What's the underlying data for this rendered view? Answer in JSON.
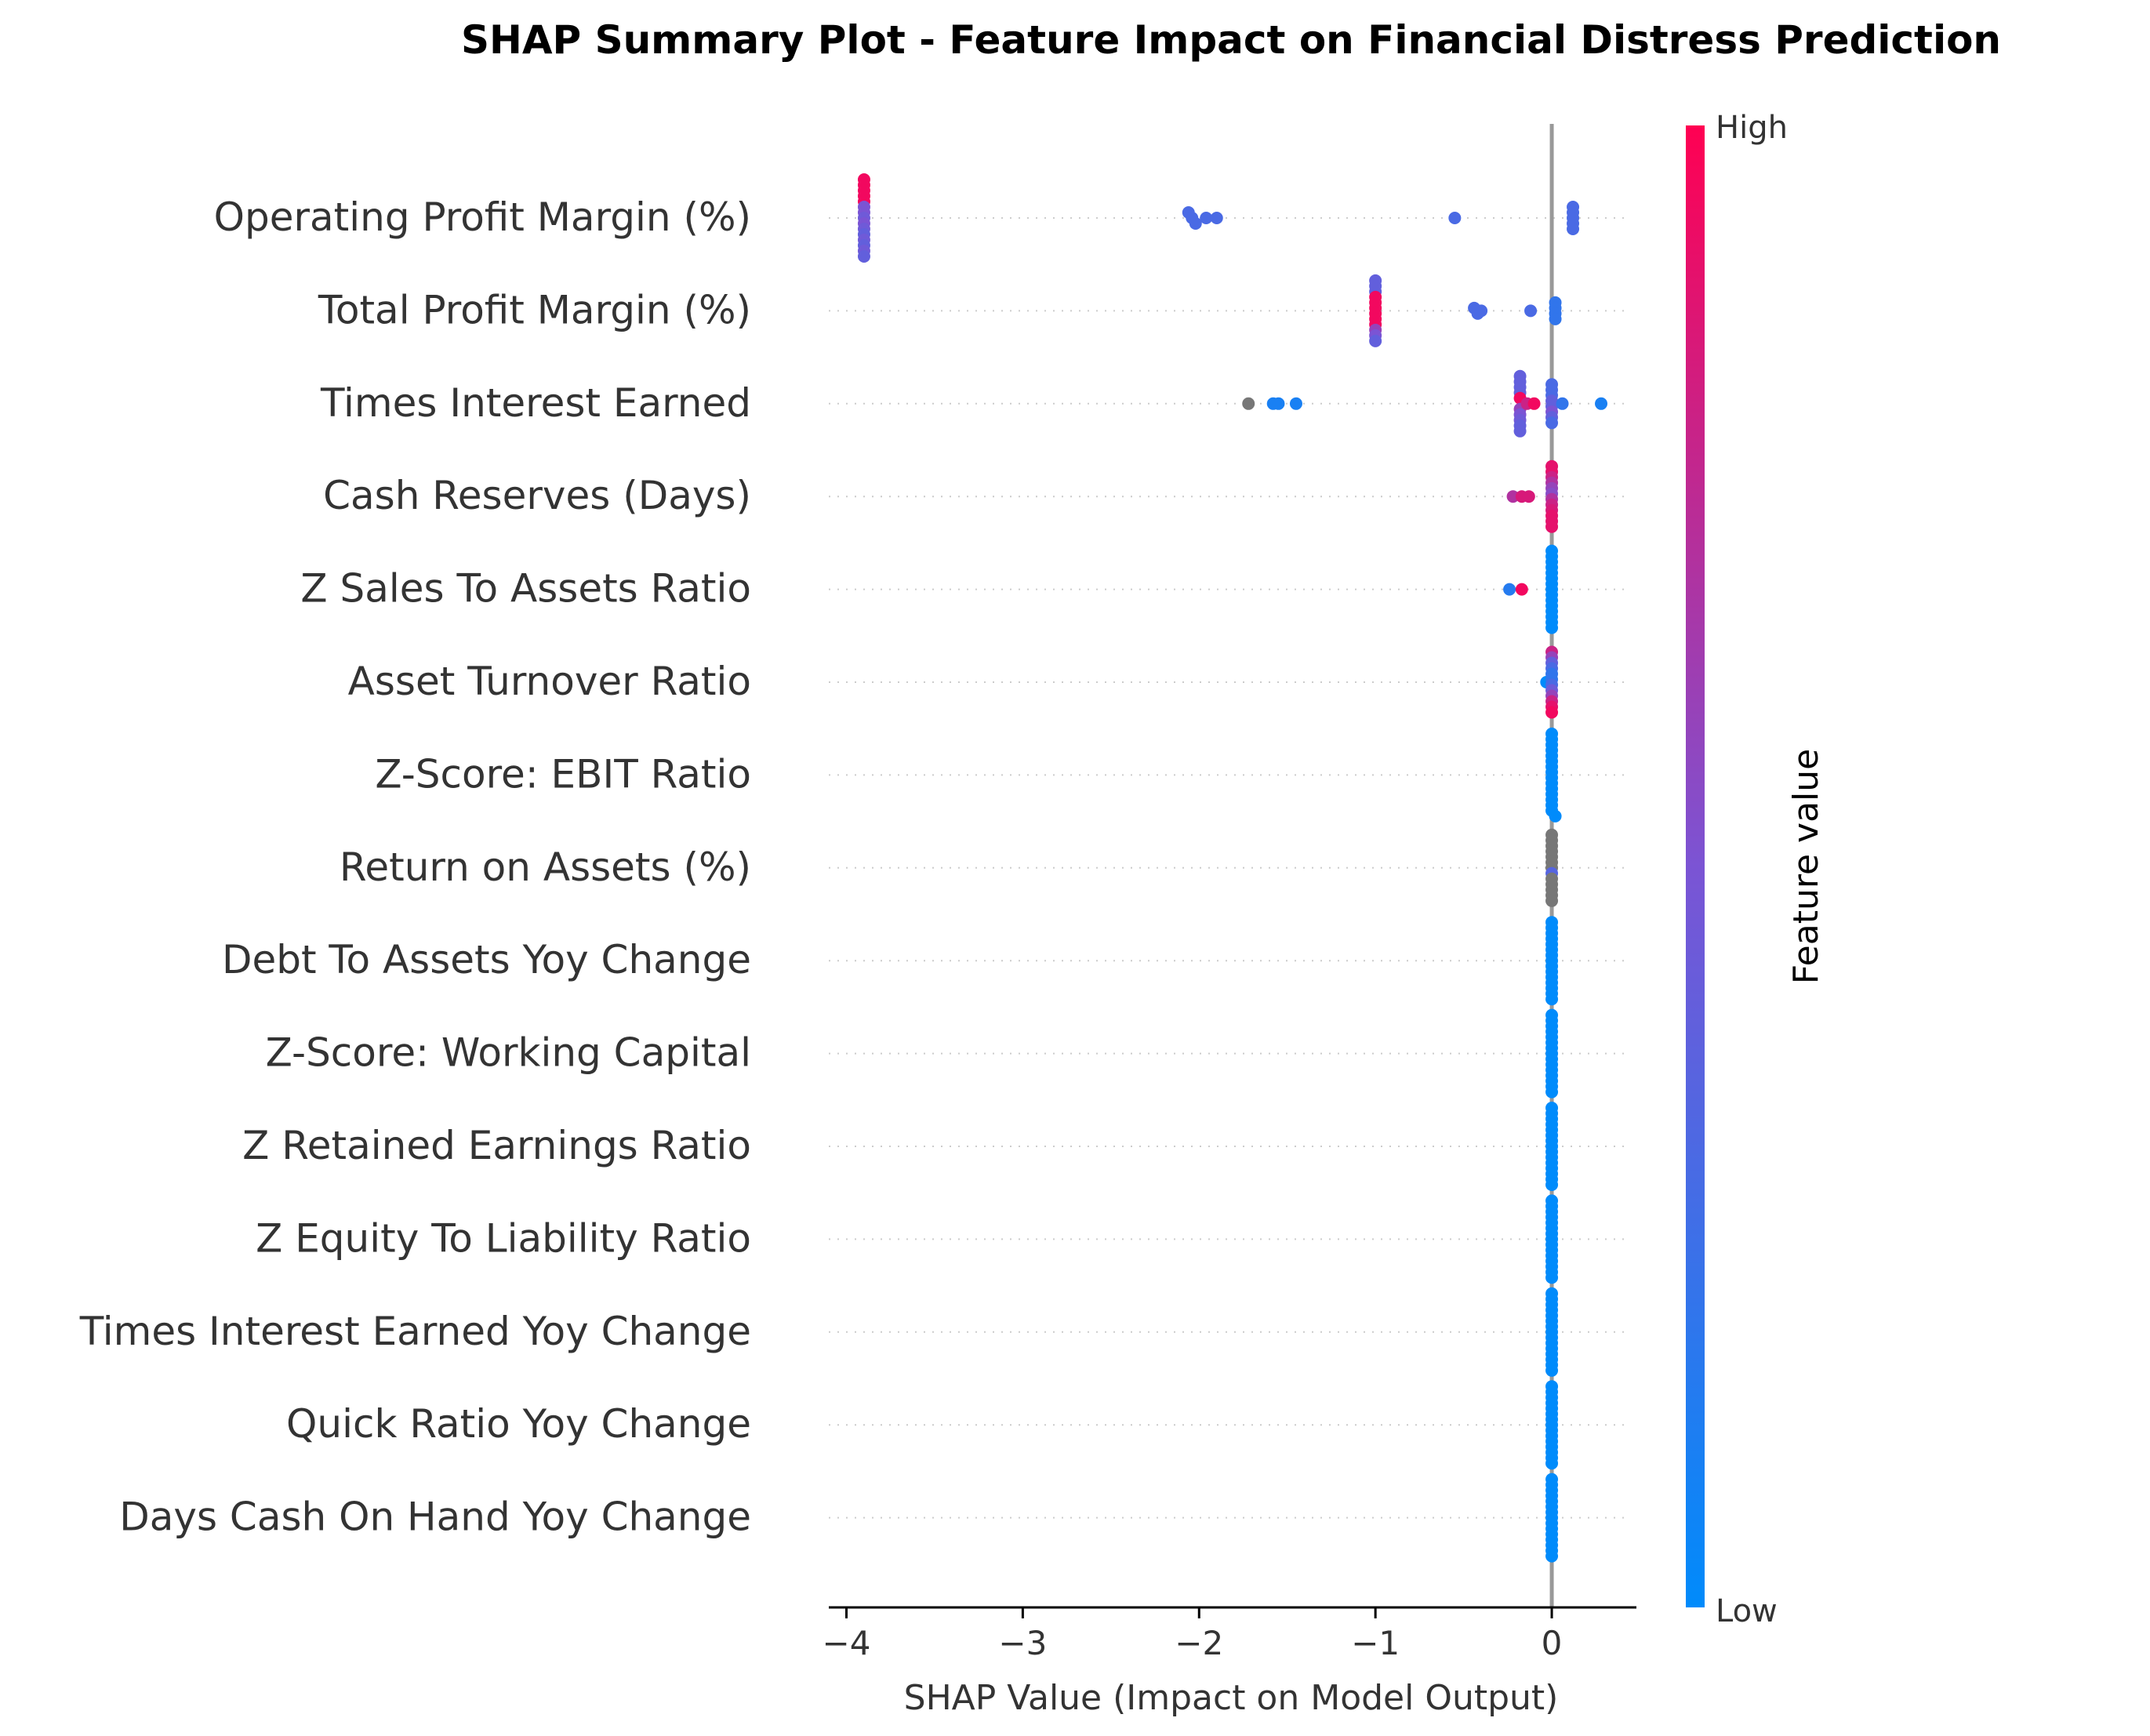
{
  "chart_data": {
    "type": "scatter",
    "title": "SHAP Summary Plot - Feature Impact on Financial Distress Prediction",
    "xlabel": "SHAP Value (Impact on Model Output)",
    "ylabel": "",
    "xlim": [
      -4.1,
      0.48
    ],
    "xticks": [
      -4,
      -3,
      -2,
      -1,
      0
    ],
    "xtick_labels": [
      "−4",
      "−3",
      "−2",
      "−1",
      "0"
    ],
    "grid": false,
    "zero_line": true,
    "colorbar": {
      "label": "Feature value",
      "high_label": "High",
      "low_label": "Low",
      "high_color": "#ff0052",
      "mid_color": "#7b54d4",
      "low_color": "#008bfb"
    },
    "missing_value_color": "#777777",
    "features": [
      {
        "name": "Operating Profit Margin (%)",
        "points": [
          {
            "x": -3.9,
            "v": 0.95
          },
          {
            "x": -3.9,
            "v": 0.95
          },
          {
            "x": -3.9,
            "v": 0.95
          },
          {
            "x": -3.9,
            "v": 0.95
          },
          {
            "x": -3.9,
            "v": 0.95
          },
          {
            "x": -3.9,
            "v": 0.5
          },
          {
            "x": -3.9,
            "v": 0.5
          },
          {
            "x": -3.9,
            "v": 0.45
          },
          {
            "x": -3.9,
            "v": 0.5
          },
          {
            "x": -3.9,
            "v": 0.45
          },
          {
            "x": -3.9,
            "v": 0.4
          },
          {
            "x": -3.9,
            "v": 0.45
          },
          {
            "x": -3.9,
            "v": 0.4
          },
          {
            "x": -3.9,
            "v": 0.45
          },
          {
            "x": -3.9,
            "v": 0.4
          },
          {
            "x": -2.06,
            "v": 0.3
          },
          {
            "x": -2.04,
            "v": 0.3
          },
          {
            "x": -2.02,
            "v": 0.3
          },
          {
            "x": -1.96,
            "v": 0.3
          },
          {
            "x": -1.9,
            "v": 0.3
          },
          {
            "x": -0.55,
            "v": 0.3
          },
          {
            "x": 0.12,
            "v": 0.3
          },
          {
            "x": 0.12,
            "v": 0.3
          },
          {
            "x": 0.12,
            "v": 0.3
          },
          {
            "x": 0.12,
            "v": 0.3
          },
          {
            "x": 0.12,
            "v": 0.3
          }
        ]
      },
      {
        "name": "Total Profit Margin (%)",
        "points": [
          {
            "x": -1.0,
            "v": 0.4
          },
          {
            "x": -1.0,
            "v": 0.4
          },
          {
            "x": -1.0,
            "v": 0.4
          },
          {
            "x": -1.0,
            "v": 0.95
          },
          {
            "x": -1.0,
            "v": 0.95
          },
          {
            "x": -1.0,
            "v": 0.95
          },
          {
            "x": -1.0,
            "v": 0.95
          },
          {
            "x": -1.0,
            "v": 0.95
          },
          {
            "x": -1.0,
            "v": 0.95
          },
          {
            "x": -1.0,
            "v": 0.6
          },
          {
            "x": -1.0,
            "v": 0.5
          },
          {
            "x": -1.0,
            "v": 0.4
          },
          {
            "x": -0.44,
            "v": 0.3
          },
          {
            "x": -0.42,
            "v": 0.3
          },
          {
            "x": -0.4,
            "v": 0.3
          },
          {
            "x": -0.12,
            "v": 0.3
          },
          {
            "x": 0.02,
            "v": 0.2
          },
          {
            "x": 0.02,
            "v": 0.2
          },
          {
            "x": 0.02,
            "v": 0.2
          },
          {
            "x": 0.02,
            "v": 0.2
          }
        ]
      },
      {
        "name": "Times Interest Earned",
        "points": [
          {
            "x": -1.72,
            "v": null
          },
          {
            "x": -1.58,
            "v": 0.1
          },
          {
            "x": -1.55,
            "v": 0.1
          },
          {
            "x": -1.45,
            "v": 0.1
          },
          {
            "x": -0.18,
            "v": 0.4
          },
          {
            "x": -0.18,
            "v": 0.4
          },
          {
            "x": -0.18,
            "v": 0.4
          },
          {
            "x": -0.18,
            "v": 0.4
          },
          {
            "x": -0.18,
            "v": 0.95
          },
          {
            "x": -0.16,
            "v": 0.95
          },
          {
            "x": -0.14,
            "v": 0.8
          },
          {
            "x": -0.1,
            "v": 0.95
          },
          {
            "x": -0.18,
            "v": 0.6
          },
          {
            "x": -0.18,
            "v": 0.5
          },
          {
            "x": -0.18,
            "v": 0.45
          },
          {
            "x": -0.18,
            "v": 0.4
          },
          {
            "x": -0.18,
            "v": 0.4
          },
          {
            "x": 0.0,
            "v": 0.3
          },
          {
            "x": 0.0,
            "v": 0.3
          },
          {
            "x": 0.0,
            "v": 0.3
          },
          {
            "x": 0.0,
            "v": 0.4
          },
          {
            "x": 0.0,
            "v": 0.4
          },
          {
            "x": 0.0,
            "v": 0.5
          },
          {
            "x": 0.0,
            "v": 0.4
          },
          {
            "x": 0.0,
            "v": 0.3
          },
          {
            "x": 0.06,
            "v": 0.2
          },
          {
            "x": 0.28,
            "v": 0.1
          }
        ]
      },
      {
        "name": "Cash Reserves (Days)",
        "points": [
          {
            "x": -0.22,
            "v": 0.7
          },
          {
            "x": -0.17,
            "v": 0.85
          },
          {
            "x": -0.13,
            "v": 0.85
          },
          {
            "x": 0.0,
            "v": 0.9
          },
          {
            "x": 0.0,
            "v": 0.9
          },
          {
            "x": 0.0,
            "v": 0.8
          },
          {
            "x": 0.0,
            "v": 0.7
          },
          {
            "x": 0.0,
            "v": 0.6
          },
          {
            "x": 0.0,
            "v": 0.55
          },
          {
            "x": 0.0,
            "v": 0.7
          },
          {
            "x": 0.0,
            "v": 0.8
          },
          {
            "x": 0.0,
            "v": 0.85
          },
          {
            "x": 0.0,
            "v": 0.9
          },
          {
            "x": 0.0,
            "v": 0.9
          },
          {
            "x": 0.0,
            "v": 0.9
          }
        ]
      },
      {
        "name": "Z Sales To Assets Ratio",
        "points": [
          {
            "x": -0.24,
            "v": 0.15
          },
          {
            "x": -0.17,
            "v": 0.95
          },
          {
            "x": 0.0,
            "v": 0.0
          },
          {
            "x": 0.0,
            "v": 0.0
          },
          {
            "x": 0.0,
            "v": 0.0
          },
          {
            "x": 0.0,
            "v": 0.0
          },
          {
            "x": 0.0,
            "v": 0.0
          },
          {
            "x": 0.0,
            "v": 0.0
          },
          {
            "x": 0.0,
            "v": 0.0
          },
          {
            "x": 0.0,
            "v": 0.0
          },
          {
            "x": 0.0,
            "v": 0.0
          },
          {
            "x": 0.0,
            "v": 0.0
          },
          {
            "x": 0.0,
            "v": 0.0
          },
          {
            "x": 0.0,
            "v": 0.0
          },
          {
            "x": 0.0,
            "v": 0.0
          },
          {
            "x": 0.0,
            "v": 0.0
          },
          {
            "x": 0.0,
            "v": 0.0
          }
        ]
      },
      {
        "name": "Asset Turnover Ratio",
        "points": [
          {
            "x": -0.03,
            "v": 0.0
          },
          {
            "x": 0.0,
            "v": 0.8
          },
          {
            "x": 0.0,
            "v": 0.6
          },
          {
            "x": 0.0,
            "v": 0.4
          },
          {
            "x": 0.0,
            "v": 0.3
          },
          {
            "x": 0.0,
            "v": 0.2
          },
          {
            "x": 0.0,
            "v": 0.2
          },
          {
            "x": 0.0,
            "v": 0.3
          },
          {
            "x": 0.0,
            "v": 0.45
          },
          {
            "x": 0.0,
            "v": 0.6
          },
          {
            "x": 0.0,
            "v": 0.8
          },
          {
            "x": 0.0,
            "v": 0.9
          },
          {
            "x": 0.0,
            "v": 0.95
          }
        ]
      },
      {
        "name": "Z-Score: EBIT Ratio",
        "points": [
          {
            "x": 0.0,
            "v": 0.0
          },
          {
            "x": 0.0,
            "v": 0.0
          },
          {
            "x": 0.0,
            "v": 0.0
          },
          {
            "x": 0.0,
            "v": 0.0
          },
          {
            "x": 0.0,
            "v": 0.0
          },
          {
            "x": 0.0,
            "v": 0.0
          },
          {
            "x": 0.0,
            "v": 0.0
          },
          {
            "x": 0.0,
            "v": 0.0
          },
          {
            "x": 0.0,
            "v": 0.0
          },
          {
            "x": 0.0,
            "v": 0.0
          },
          {
            "x": 0.0,
            "v": 0.0
          },
          {
            "x": 0.0,
            "v": 0.0
          },
          {
            "x": 0.0,
            "v": 0.0
          },
          {
            "x": 0.0,
            "v": 0.0
          },
          {
            "x": 0.0,
            "v": 0.0
          },
          {
            "x": 0.02,
            "v": 0.0
          }
        ]
      },
      {
        "name": "Return on Assets (%)",
        "points": [
          {
            "x": 0.0,
            "v": null
          },
          {
            "x": 0.0,
            "v": null
          },
          {
            "x": 0.0,
            "v": null
          },
          {
            "x": 0.0,
            "v": null
          },
          {
            "x": 0.0,
            "v": null
          },
          {
            "x": 0.0,
            "v": null
          },
          {
            "x": 0.0,
            "v": null
          },
          {
            "x": 0.0,
            "v": 0.35
          },
          {
            "x": 0.0,
            "v": null
          },
          {
            "x": 0.0,
            "v": null
          },
          {
            "x": 0.0,
            "v": null
          },
          {
            "x": 0.0,
            "v": null
          },
          {
            "x": 0.0,
            "v": null
          }
        ]
      },
      {
        "name": "Debt To Assets Yoy Change",
        "points": [
          {
            "x": 0.0,
            "v": 0.0
          },
          {
            "x": 0.0,
            "v": 0.0
          },
          {
            "x": 0.0,
            "v": 0.0
          },
          {
            "x": 0.0,
            "v": 0.0
          },
          {
            "x": 0.0,
            "v": 0.0
          },
          {
            "x": 0.0,
            "v": 0.0
          },
          {
            "x": 0.0,
            "v": 0.0
          },
          {
            "x": 0.0,
            "v": 0.0
          },
          {
            "x": 0.0,
            "v": 0.0
          },
          {
            "x": 0.0,
            "v": 0.0
          },
          {
            "x": 0.0,
            "v": 0.0
          },
          {
            "x": 0.0,
            "v": 0.0
          },
          {
            "x": 0.0,
            "v": 0.0
          },
          {
            "x": 0.0,
            "v": 0.0
          },
          {
            "x": 0.0,
            "v": 0.0
          }
        ]
      },
      {
        "name": "Z-Score: Working Capital",
        "points": [
          {
            "x": 0.0,
            "v": 0.0
          },
          {
            "x": 0.0,
            "v": 0.0
          },
          {
            "x": 0.0,
            "v": 0.0
          },
          {
            "x": 0.0,
            "v": 0.0
          },
          {
            "x": 0.0,
            "v": 0.0
          },
          {
            "x": 0.0,
            "v": 0.0
          },
          {
            "x": 0.0,
            "v": 0.0
          },
          {
            "x": 0.0,
            "v": 0.0
          },
          {
            "x": 0.0,
            "v": 0.0
          },
          {
            "x": 0.0,
            "v": 0.0
          },
          {
            "x": 0.0,
            "v": 0.0
          },
          {
            "x": 0.0,
            "v": 0.0
          },
          {
            "x": 0.0,
            "v": 0.0
          },
          {
            "x": 0.0,
            "v": 0.0
          },
          {
            "x": 0.0,
            "v": 0.0
          }
        ]
      },
      {
        "name": "Z Retained Earnings Ratio",
        "points": [
          {
            "x": 0.0,
            "v": 0.0
          },
          {
            "x": 0.0,
            "v": 0.0
          },
          {
            "x": 0.0,
            "v": 0.0
          },
          {
            "x": 0.0,
            "v": 0.0
          },
          {
            "x": 0.0,
            "v": 0.0
          },
          {
            "x": 0.0,
            "v": 0.0
          },
          {
            "x": 0.0,
            "v": 0.0
          },
          {
            "x": 0.0,
            "v": 0.0
          },
          {
            "x": 0.0,
            "v": 0.0
          },
          {
            "x": 0.0,
            "v": 0.0
          },
          {
            "x": 0.0,
            "v": 0.0
          },
          {
            "x": 0.0,
            "v": 0.0
          },
          {
            "x": 0.0,
            "v": 0.0
          },
          {
            "x": 0.0,
            "v": 0.0
          },
          {
            "x": 0.0,
            "v": 0.0
          }
        ]
      },
      {
        "name": "Z Equity To Liability Ratio",
        "points": [
          {
            "x": 0.0,
            "v": 0.0
          },
          {
            "x": 0.0,
            "v": 0.0
          },
          {
            "x": 0.0,
            "v": 0.0
          },
          {
            "x": 0.0,
            "v": 0.0
          },
          {
            "x": 0.0,
            "v": 0.0
          },
          {
            "x": 0.0,
            "v": 0.0
          },
          {
            "x": 0.0,
            "v": 0.0
          },
          {
            "x": 0.0,
            "v": 0.0
          },
          {
            "x": 0.0,
            "v": 0.0
          },
          {
            "x": 0.0,
            "v": 0.0
          },
          {
            "x": 0.0,
            "v": 0.0
          },
          {
            "x": 0.0,
            "v": 0.0
          },
          {
            "x": 0.0,
            "v": 0.0
          },
          {
            "x": 0.0,
            "v": 0.0
          },
          {
            "x": 0.0,
            "v": 0.0
          }
        ]
      },
      {
        "name": "Times Interest Earned Yoy Change",
        "points": [
          {
            "x": 0.0,
            "v": 0.0
          },
          {
            "x": 0.0,
            "v": 0.0
          },
          {
            "x": 0.0,
            "v": 0.0
          },
          {
            "x": 0.0,
            "v": 0.0
          },
          {
            "x": 0.0,
            "v": 0.0
          },
          {
            "x": 0.0,
            "v": 0.0
          },
          {
            "x": 0.0,
            "v": 0.0
          },
          {
            "x": 0.0,
            "v": 0.0
          },
          {
            "x": 0.0,
            "v": 0.0
          },
          {
            "x": 0.0,
            "v": 0.0
          },
          {
            "x": 0.0,
            "v": 0.0
          },
          {
            "x": 0.0,
            "v": 0.0
          },
          {
            "x": 0.0,
            "v": 0.0
          },
          {
            "x": 0.0,
            "v": 0.0
          },
          {
            "x": 0.0,
            "v": 0.0
          }
        ]
      },
      {
        "name": "Quick Ratio Yoy Change",
        "points": [
          {
            "x": 0.0,
            "v": 0.0
          },
          {
            "x": 0.0,
            "v": 0.0
          },
          {
            "x": 0.0,
            "v": 0.0
          },
          {
            "x": 0.0,
            "v": 0.0
          },
          {
            "x": 0.0,
            "v": 0.0
          },
          {
            "x": 0.0,
            "v": 0.0
          },
          {
            "x": 0.0,
            "v": 0.0
          },
          {
            "x": 0.0,
            "v": 0.0
          },
          {
            "x": 0.0,
            "v": 0.0
          },
          {
            "x": 0.0,
            "v": 0.0
          },
          {
            "x": 0.0,
            "v": 0.0
          },
          {
            "x": 0.0,
            "v": 0.0
          },
          {
            "x": 0.0,
            "v": 0.0
          },
          {
            "x": 0.0,
            "v": 0.0
          },
          {
            "x": 0.0,
            "v": 0.0
          }
        ]
      },
      {
        "name": "Days Cash On Hand Yoy Change",
        "points": [
          {
            "x": 0.0,
            "v": 0.0
          },
          {
            "x": 0.0,
            "v": 0.0
          },
          {
            "x": 0.0,
            "v": 0.0
          },
          {
            "x": 0.0,
            "v": 0.0
          },
          {
            "x": 0.0,
            "v": 0.0
          },
          {
            "x": 0.0,
            "v": 0.0
          },
          {
            "x": 0.0,
            "v": 0.0
          },
          {
            "x": 0.0,
            "v": 0.0
          },
          {
            "x": 0.0,
            "v": 0.0
          },
          {
            "x": 0.0,
            "v": 0.0
          },
          {
            "x": 0.0,
            "v": 0.0
          },
          {
            "x": 0.0,
            "v": 0.0
          },
          {
            "x": 0.0,
            "v": 0.0
          },
          {
            "x": 0.0,
            "v": 0.0
          },
          {
            "x": 0.0,
            "v": 0.0
          }
        ]
      }
    ]
  }
}
